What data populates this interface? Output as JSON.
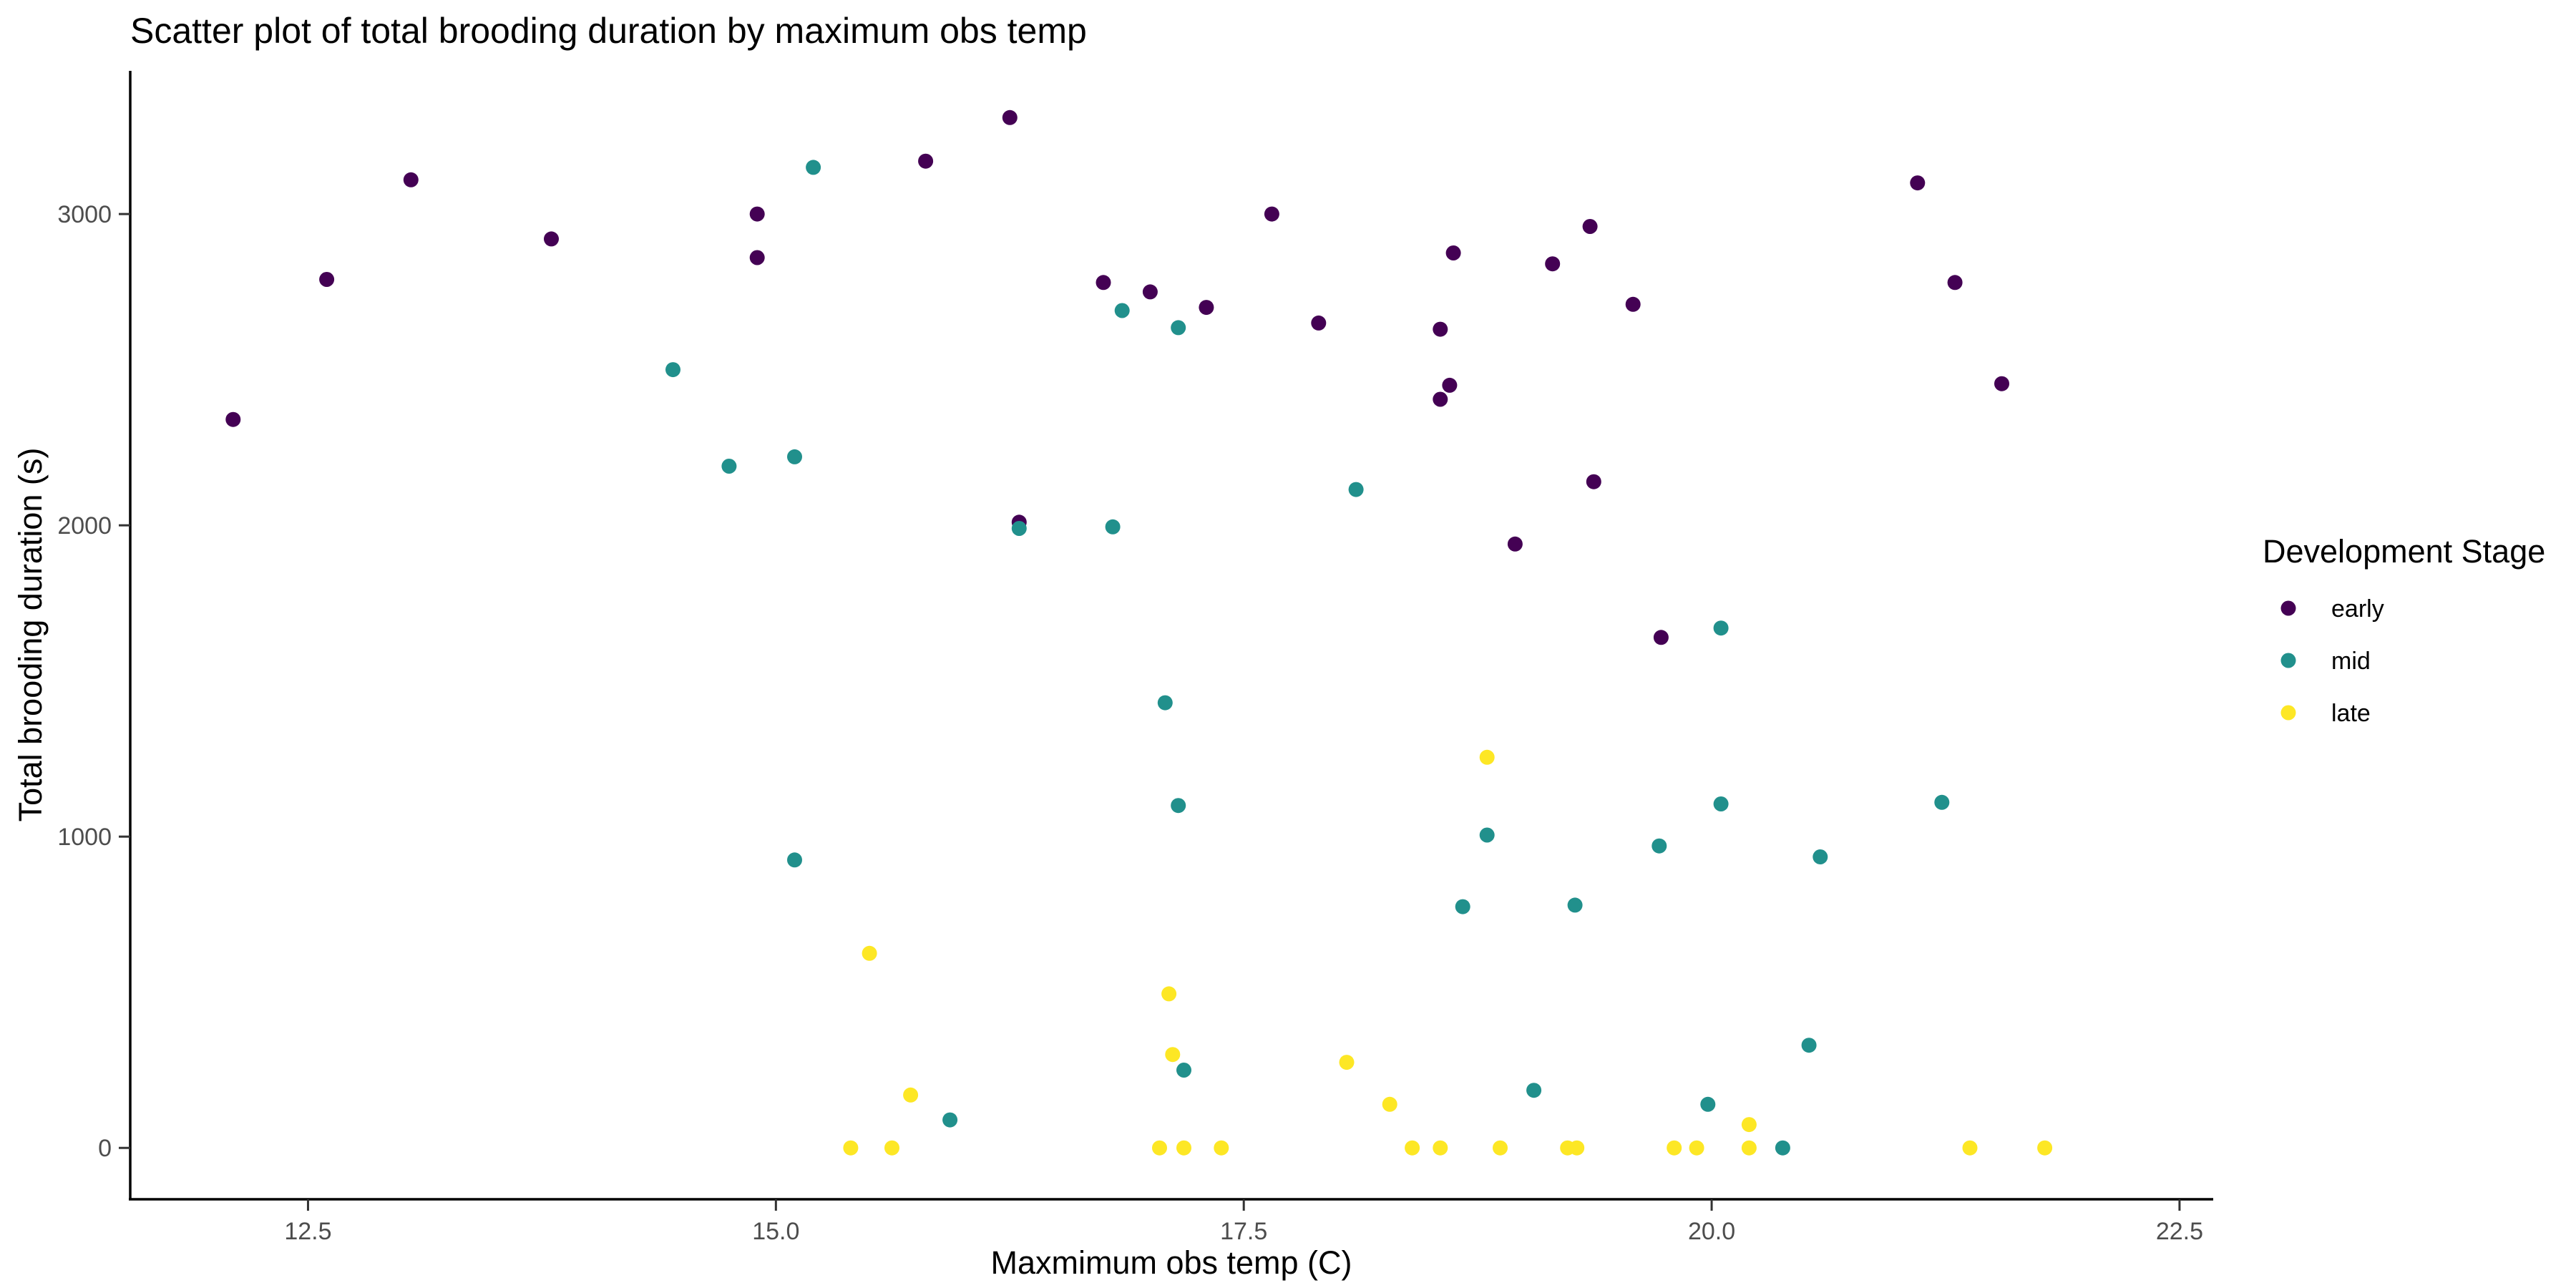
{
  "chart_data": {
    "type": "scatter",
    "title": "Scatter plot of total brooding duration by maximum obs temp",
    "xlabel": "Maxmimum obs temp (C)",
    "ylabel": "Total brooding duration (s)",
    "xlim": [
      11.55,
      22.68
    ],
    "ylim": [
      -165,
      3460
    ],
    "x_ticks": [
      12.5,
      15.0,
      17.5,
      20.0,
      22.5
    ],
    "x_tick_labels": [
      "12.5",
      "15.0",
      "17.5",
      "20.0",
      "22.5"
    ],
    "y_ticks": [
      0,
      1000,
      2000,
      3000
    ],
    "y_tick_labels": [
      "0",
      "1000",
      "2000",
      "3000"
    ],
    "grid": false,
    "legend": {
      "title": "Development Stage",
      "position": "right"
    },
    "series": [
      {
        "name": "early",
        "color": "#440154",
        "points": [
          [
            12.1,
            2340
          ],
          [
            12.6,
            2790
          ],
          [
            13.05,
            3110
          ],
          [
            13.8,
            2920
          ],
          [
            14.9,
            3000
          ],
          [
            14.9,
            2860
          ],
          [
            15.8,
            3170
          ],
          [
            16.25,
            3310
          ],
          [
            16.3,
            2010
          ],
          [
            16.75,
            2780
          ],
          [
            17.0,
            2750
          ],
          [
            17.3,
            2700
          ],
          [
            17.65,
            3000
          ],
          [
            17.9,
            2650
          ],
          [
            18.55,
            2630
          ],
          [
            18.55,
            2405
          ],
          [
            18.6,
            2450
          ],
          [
            18.62,
            2875
          ],
          [
            18.95,
            1940
          ],
          [
            19.15,
            2840
          ],
          [
            19.35,
            2960
          ],
          [
            19.37,
            2140
          ],
          [
            19.58,
            2710
          ],
          [
            19.73,
            1640
          ],
          [
            21.1,
            3100
          ],
          [
            21.3,
            2780
          ],
          [
            21.55,
            2455
          ]
        ]
      },
      {
        "name": "mid",
        "color": "#21908C",
        "points": [
          [
            14.45,
            2500
          ],
          [
            14.75,
            2190
          ],
          [
            15.1,
            2220
          ],
          [
            15.1,
            925
          ],
          [
            15.2,
            3150
          ],
          [
            15.93,
            90
          ],
          [
            16.3,
            1990
          ],
          [
            16.8,
            1995
          ],
          [
            16.85,
            2690
          ],
          [
            17.08,
            1430
          ],
          [
            17.15,
            2635
          ],
          [
            17.15,
            1100
          ],
          [
            17.18,
            250
          ],
          [
            18.1,
            2115
          ],
          [
            18.67,
            775
          ],
          [
            18.8,
            1005
          ],
          [
            19.05,
            185
          ],
          [
            19.27,
            780
          ],
          [
            19.72,
            970
          ],
          [
            19.98,
            140
          ],
          [
            20.05,
            1670
          ],
          [
            20.05,
            1105
          ],
          [
            20.38,
            0
          ],
          [
            20.52,
            330
          ],
          [
            20.58,
            935
          ],
          [
            21.23,
            1110
          ]
        ]
      },
      {
        "name": "late",
        "color": "#FDE725",
        "points": [
          [
            15.4,
            0
          ],
          [
            15.5,
            625
          ],
          [
            15.62,
            0
          ],
          [
            15.72,
            170
          ],
          [
            17.05,
            0
          ],
          [
            17.1,
            495
          ],
          [
            17.12,
            300
          ],
          [
            17.18,
            0
          ],
          [
            17.38,
            0
          ],
          [
            18.05,
            275
          ],
          [
            18.28,
            140
          ],
          [
            18.4,
            0
          ],
          [
            18.55,
            0
          ],
          [
            18.8,
            1255
          ],
          [
            18.87,
            0
          ],
          [
            19.23,
            0
          ],
          [
            19.28,
            0
          ],
          [
            19.8,
            0
          ],
          [
            19.92,
            0
          ],
          [
            20.2,
            75
          ],
          [
            20.2,
            0
          ],
          [
            21.38,
            0
          ],
          [
            21.78,
            0
          ]
        ]
      }
    ]
  }
}
